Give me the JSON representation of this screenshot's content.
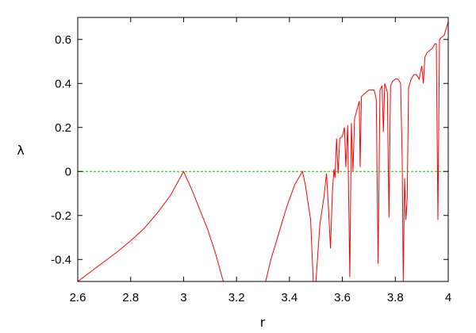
{
  "chart_data": {
    "type": "line",
    "title": "",
    "xlabel": "r",
    "ylabel": "λ",
    "xlim": [
      2.6,
      4.0
    ],
    "ylim": [
      -0.5,
      0.7
    ],
    "x_ticks": [
      "2.6",
      "2.8",
      "3",
      "3.2",
      "3.4",
      "3.6",
      "3.8",
      "4"
    ],
    "x_tick_values": [
      2.6,
      2.8,
      3.0,
      3.2,
      3.4,
      3.6,
      3.8,
      4.0
    ],
    "y_ticks": [
      "-0.4",
      "-0.2",
      "0",
      "0.2",
      "0.4",
      "0.6"
    ],
    "y_tick_values": [
      -0.4,
      -0.2,
      0.0,
      0.2,
      0.4,
      0.6
    ],
    "grid": false,
    "legend": "none",
    "colors": {
      "series": "#ff0000",
      "reference": "#00cc00",
      "frame": "#000000"
    },
    "series": [
      {
        "style": "solid",
        "color": "#ff0000",
        "points": [
          [
            2.6,
            -0.5
          ],
          [
            2.65,
            -0.455
          ],
          [
            2.7,
            -0.41
          ],
          [
            2.75,
            -0.365
          ],
          [
            2.8,
            -0.315
          ],
          [
            2.85,
            -0.26
          ],
          [
            2.9,
            -0.19
          ],
          [
            2.95,
            -0.11
          ],
          [
            3.0,
            0.0
          ],
          [
            3.03,
            -0.08
          ],
          [
            3.06,
            -0.17
          ],
          [
            3.09,
            -0.26
          ],
          [
            3.12,
            -0.37
          ],
          [
            3.15,
            -0.5
          ],
          [
            3.31,
            -0.5
          ],
          [
            3.33,
            -0.4
          ],
          [
            3.36,
            -0.28
          ],
          [
            3.39,
            -0.16
          ],
          [
            3.42,
            -0.06
          ],
          [
            3.449,
            0.0
          ],
          [
            3.46,
            -0.06
          ],
          [
            3.48,
            -0.22
          ],
          [
            3.49,
            -0.5
          ],
          [
            3.5,
            -0.5
          ],
          [
            3.515,
            -0.24
          ],
          [
            3.53,
            -0.12
          ],
          [
            3.54,
            -0.01
          ],
          [
            3.548,
            -0.18
          ],
          [
            3.555,
            -0.35
          ],
          [
            3.562,
            -0.1
          ],
          [
            3.568,
            0.01
          ],
          [
            3.572,
            -0.03
          ],
          [
            3.578,
            0.15
          ],
          [
            3.584,
            -0.01
          ],
          [
            3.59,
            0.15
          ],
          [
            3.6,
            0.16
          ],
          [
            3.608,
            0.2
          ],
          [
            3.613,
            0.02
          ],
          [
            3.62,
            0.21
          ],
          [
            3.628,
            -0.48
          ],
          [
            3.634,
            0.22
          ],
          [
            3.64,
            0.0
          ],
          [
            3.646,
            0.24
          ],
          [
            3.655,
            0.28
          ],
          [
            3.664,
            0.32
          ],
          [
            3.667,
            0.02
          ],
          [
            3.672,
            0.34
          ],
          [
            3.68,
            0.35
          ],
          [
            3.69,
            0.36
          ],
          [
            3.7,
            0.37
          ],
          [
            3.71,
            0.37
          ],
          [
            3.72,
            0.37
          ],
          [
            3.728,
            0.33
          ],
          [
            3.735,
            -0.42
          ],
          [
            3.742,
            0.37
          ],
          [
            3.75,
            0.39
          ],
          [
            3.755,
            0.18
          ],
          [
            3.76,
            0.4
          ],
          [
            3.77,
            0.36
          ],
          [
            3.776,
            -0.21
          ],
          [
            3.782,
            0.39
          ],
          [
            3.79,
            0.41
          ],
          [
            3.8,
            0.42
          ],
          [
            3.81,
            0.42
          ],
          [
            3.82,
            0.4
          ],
          [
            3.826,
            0.06
          ],
          [
            3.83,
            -0.5
          ],
          [
            3.835,
            -0.03
          ],
          [
            3.84,
            -0.22
          ],
          [
            3.845,
            -0.12
          ],
          [
            3.85,
            0.38
          ],
          [
            3.86,
            0.42
          ],
          [
            3.865,
            0.43
          ],
          [
            3.87,
            0.44
          ],
          [
            3.88,
            0.44
          ],
          [
            3.89,
            0.42
          ],
          [
            3.9,
            0.48
          ],
          [
            3.906,
            0.4
          ],
          [
            3.912,
            0.52
          ],
          [
            3.92,
            0.54
          ],
          [
            3.93,
            0.55
          ],
          [
            3.94,
            0.56
          ],
          [
            3.95,
            0.58
          ],
          [
            3.955,
            0.58
          ],
          [
            3.961,
            -0.22
          ],
          [
            3.967,
            0.6
          ],
          [
            3.975,
            0.61
          ],
          [
            3.985,
            0.62
          ],
          [
            3.995,
            0.66
          ],
          [
            4.0,
            0.68
          ]
        ]
      },
      {
        "style": "dashed",
        "color": "#00cc00",
        "points": [
          [
            2.6,
            0.0
          ],
          [
            4.0,
            0.0
          ]
        ]
      }
    ]
  }
}
